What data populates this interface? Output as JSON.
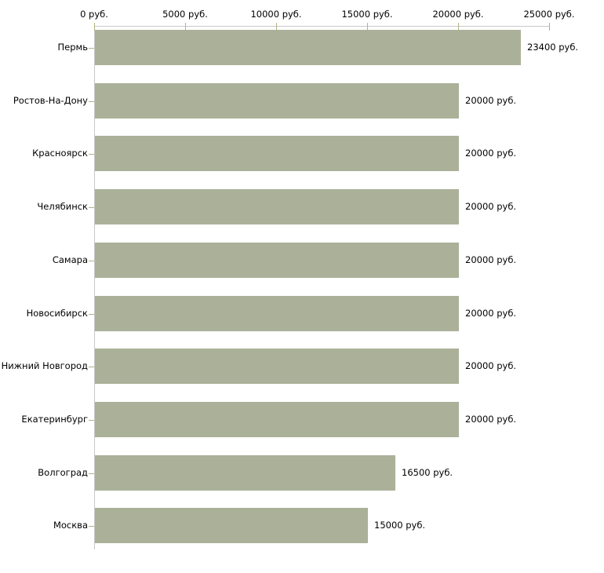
{
  "chart_data": {
    "type": "bar",
    "orientation": "horizontal",
    "title": "",
    "xlabel": "",
    "ylabel": "",
    "categories": [
      "Пермь",
      "Ростов-На-Дону",
      "Красноярск",
      "Челябинск",
      "Самара",
      "Новосибирск",
      "Нижний Новгород",
      "Екатеринбург",
      "Волгоград",
      "Москва"
    ],
    "values": [
      23400,
      20000,
      20000,
      20000,
      20000,
      20000,
      20000,
      20000,
      16500,
      15000
    ],
    "value_labels": [
      "23400 руб.",
      "20000 руб.",
      "20000 руб.",
      "20000 руб.",
      "20000 руб.",
      "20000 руб.",
      "20000 руб.",
      "20000 руб.",
      "16500 руб.",
      "15000 руб."
    ],
    "x_ticks": [
      0,
      5000,
      10000,
      15000,
      20000,
      25000
    ],
    "x_tick_labels": [
      "0 руб.",
      "5000 руб.",
      "10000 руб.",
      "15000 руб.",
      "20000 руб.",
      "25000 руб."
    ],
    "xlim": [
      0,
      25000
    ],
    "axis_position": "top",
    "grid": false,
    "legend": false,
    "colors": {
      "bar": "#abb199",
      "axis_line": "#c8c8c8",
      "tick_mark": "#b2b383",
      "text": "#000000",
      "background": "#ffffff"
    }
  }
}
